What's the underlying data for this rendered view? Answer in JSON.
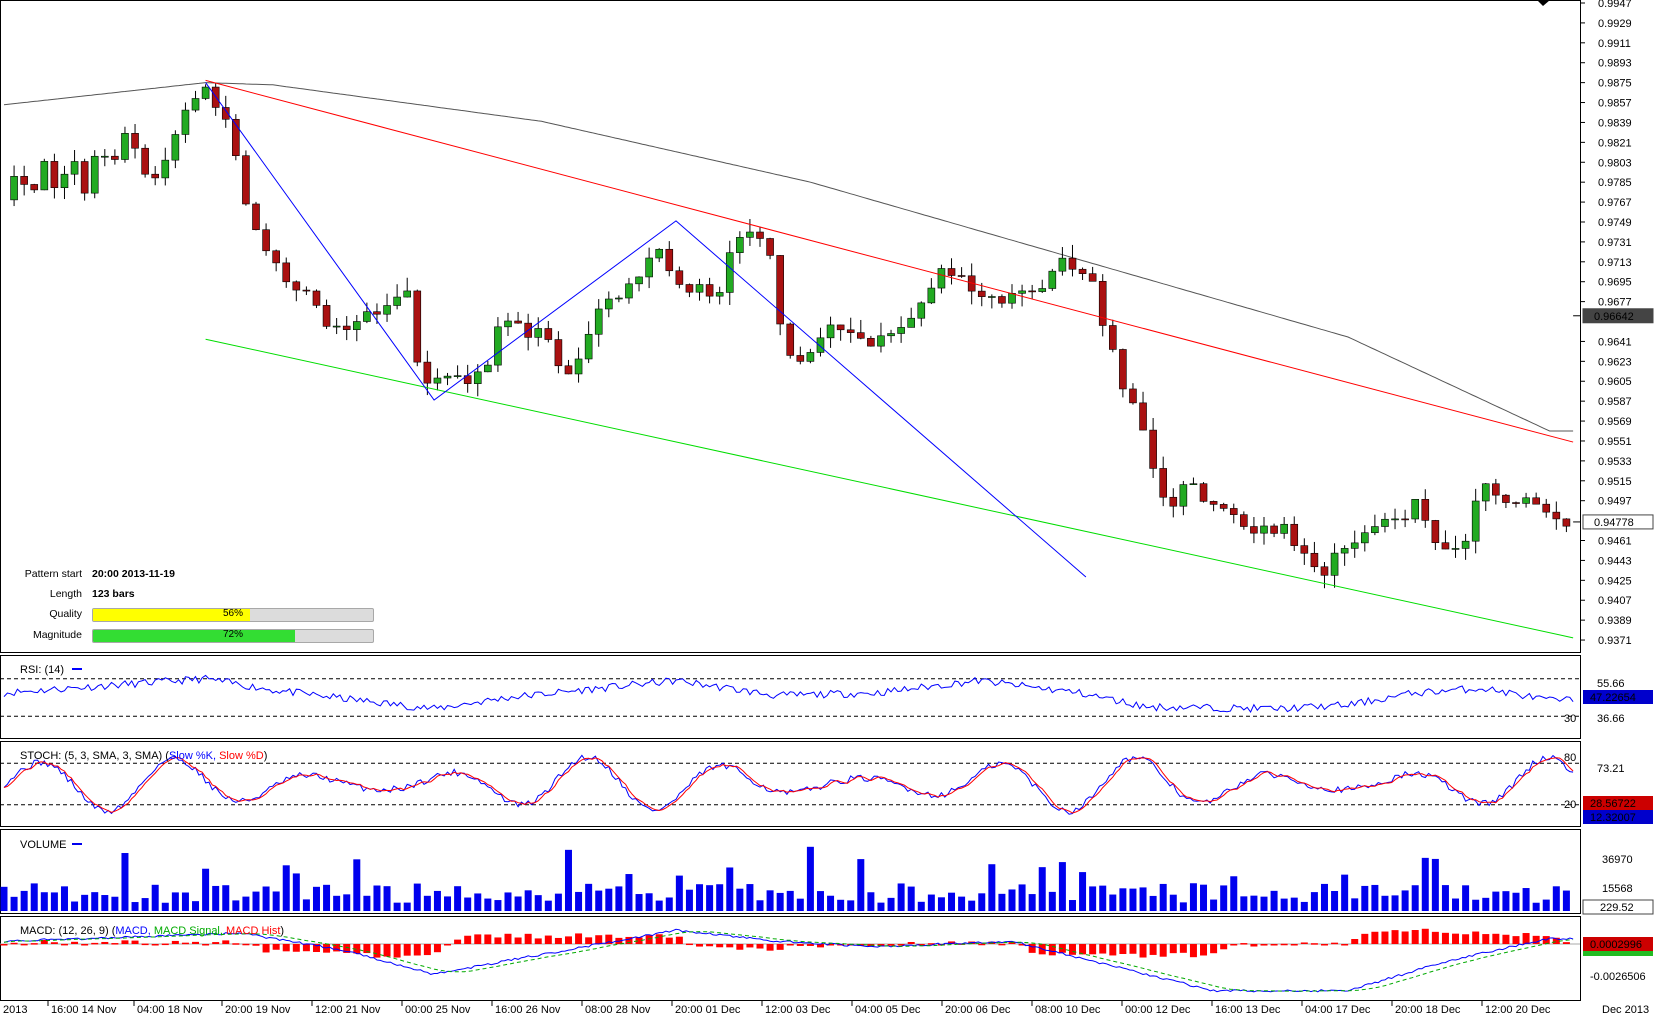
{
  "chart_data": {
    "type": "candlestick",
    "price_axis": {
      "ylim": [
        0.9362,
        0.9947
      ],
      "ticks": [
        "0.9947",
        "0.9929",
        "0.9911",
        "0.9893",
        "0.9875",
        "0.9857",
        "0.9839",
        "0.9821",
        "0.9803",
        "0.9785",
        "0.9767",
        "0.9749",
        "0.9731",
        "0.9713",
        "0.9695",
        "0.9677",
        "0.9641",
        "0.9623",
        "0.9605",
        "0.9587",
        "0.9569",
        "0.9551",
        "0.9533",
        "0.9515",
        "0.9497",
        "0.9461",
        "0.9443",
        "0.9425",
        "0.9407",
        "0.9389",
        "0.9371"
      ],
      "markers": [
        {
          "label": "0.96642",
          "value": 0.96642,
          "style": "dark"
        },
        {
          "label": "0.94778",
          "value": 0.94778,
          "style": "light"
        }
      ]
    },
    "time_axis": [
      "2013",
      "16:00 14 Nov",
      "04:00 18 Nov",
      "20:00 19 Nov",
      "12:00 21 Nov",
      "00:00 25 Nov",
      "16:00 26 Nov",
      "08:00 28 Nov",
      "20:00 01 Dec",
      "12:00 03 Dec",
      "04:00 05 Dec",
      "20:00 06 Dec",
      "08:00 10 Dec",
      "00:00 12 Dec",
      "16:00 13 Dec",
      "04:00 17 Dec",
      "20:00 18 Dec",
      "12:00 20 Dec",
      "Dec 2013"
    ],
    "keypoints": [
      [
        0,
        0.9775
      ],
      [
        4,
        0.98
      ],
      [
        8,
        0.977
      ],
      [
        12,
        0.98
      ],
      [
        16,
        0.977
      ],
      [
        20,
        0.981
      ],
      [
        24,
        0.977
      ],
      [
        28,
        0.982
      ],
      [
        32,
        0.98
      ],
      [
        36,
        0.983
      ],
      [
        40,
        0.981
      ],
      [
        44,
        0.9785
      ],
      [
        48,
        0.98
      ],
      [
        52,
        0.984
      ],
      [
        56,
        0.986
      ],
      [
        60,
        0.9873
      ],
      [
        64,
        0.985
      ],
      [
        68,
        0.9825
      ],
      [
        72,
        0.976
      ],
      [
        76,
        0.974
      ],
      [
        80,
        0.971
      ],
      [
        84,
        0.97
      ],
      [
        88,
        0.969
      ],
      [
        92,
        0.968
      ],
      [
        96,
        0.965
      ],
      [
        100,
        0.965
      ],
      [
        104,
        0.9665
      ],
      [
        108,
        0.9665
      ],
      [
        112,
        0.967
      ],
      [
        116,
        0.968
      ],
      [
        120,
        0.9685
      ],
      [
        124,
        0.9595
      ],
      [
        128,
        0.961
      ],
      [
        132,
        0.9615
      ],
      [
        136,
        0.9605
      ],
      [
        140,
        0.961
      ],
      [
        144,
        0.9615
      ],
      [
        148,
        0.966
      ],
      [
        152,
        0.9665
      ],
      [
        156,
        0.964
      ],
      [
        160,
        0.9655
      ],
      [
        164,
        0.9625
      ],
      [
        168,
        0.961
      ],
      [
        172,
        0.9635
      ],
      [
        176,
        0.966
      ],
      [
        180,
        0.968
      ],
      [
        184,
        0.968
      ],
      [
        188,
        0.97
      ],
      [
        192,
        0.972
      ],
      [
        196,
        0.973
      ],
      [
        200,
        0.969
      ],
      [
        204,
        0.968
      ],
      [
        208,
        0.9695
      ],
      [
        212,
        0.968
      ],
      [
        216,
        0.972
      ],
      [
        220,
        0.9746
      ],
      [
        224,
        0.974
      ],
      [
        228,
        0.972
      ],
      [
        232,
        0.964
      ],
      [
        236,
        0.9625
      ],
      [
        240,
        0.9635
      ],
      [
        244,
        0.9645
      ],
      [
        248,
        0.9655
      ],
      [
        252,
        0.965
      ],
      [
        256,
        0.9635
      ],
      [
        260,
        0.964
      ],
      [
        264,
        0.965
      ],
      [
        268,
        0.9655
      ],
      [
        272,
        0.9665
      ],
      [
        276,
        0.969
      ],
      [
        280,
        0.9705
      ],
      [
        284,
        0.97
      ],
      [
        288,
        0.969
      ],
      [
        292,
        0.9685
      ],
      [
        296,
        0.9675
      ],
      [
        300,
        0.968
      ],
      [
        304,
        0.969
      ],
      [
        308,
        0.968
      ],
      [
        312,
        0.97
      ],
      [
        316,
        0.9715
      ],
      [
        320,
        0.97
      ],
      [
        324,
        0.969
      ],
      [
        328,
        0.965
      ],
      [
        332,
        0.961
      ],
      [
        336,
        0.958
      ],
      [
        340,
        0.955
      ],
      [
        344,
        0.95
      ],
      [
        348,
        0.9495
      ],
      [
        352,
        0.9515
      ],
      [
        356,
        0.95
      ],
      [
        360,
        0.949
      ],
      [
        364,
        0.949
      ],
      [
        368,
        0.947
      ],
      [
        372,
        0.9465
      ],
      [
        376,
        0.947
      ],
      [
        380,
        0.9475
      ],
      [
        384,
        0.946
      ],
      [
        388,
        0.9445
      ],
      [
        392,
        0.943
      ],
      [
        396,
        0.945
      ],
      [
        400,
        0.9455
      ],
      [
        404,
        0.946
      ],
      [
        408,
        0.947
      ],
      [
        412,
        0.948
      ],
      [
        416,
        0.948
      ],
      [
        420,
        0.95
      ],
      [
        424,
        0.947
      ],
      [
        428,
        0.946
      ],
      [
        432,
        0.9455
      ],
      [
        436,
        0.947
      ],
      [
        440,
        0.952
      ],
      [
        444,
        0.9505
      ],
      [
        448,
        0.9495
      ],
      [
        452,
        0.95
      ],
      [
        456,
        0.949
      ],
      [
        460,
        0.9478
      ]
    ],
    "sma_keypoints": [
      [
        0,
        0.9855
      ],
      [
        60,
        0.9875
      ],
      [
        80,
        0.9873
      ],
      [
        160,
        0.984
      ],
      [
        240,
        0.9785
      ],
      [
        320,
        0.9715
      ],
      [
        400,
        0.9645
      ],
      [
        460,
        0.956
      ]
    ],
    "channel": {
      "upper": {
        "from": [
          60,
          0.9877
        ],
        "to": [
          467,
          0.955
        ]
      },
      "lower": {
        "from": [
          60,
          0.9643
        ],
        "to": [
          467,
          0.9373
        ]
      }
    },
    "zigzag": [
      [
        60,
        0.9875
      ],
      [
        128,
        0.9588
      ],
      [
        200,
        0.975
      ],
      [
        322,
        0.9428
      ]
    ],
    "pattern": {
      "start_key": "Pattern start",
      "start_val": "20:00 2013-11-19",
      "length_key": "Length",
      "length_val": "123 bars",
      "quality_key": "Quality",
      "quality_pct": 56,
      "quality_label": "56%",
      "quality_color": "#ffff00",
      "magnitude_key": "Magnitude",
      "magnitude_pct": 72,
      "magnitude_label": "72%",
      "magnitude_color": "#33dd33"
    },
    "indicators": {
      "rsi": {
        "title": "RSI: (14)",
        "levels": [
          70,
          30
        ],
        "level_label": "30",
        "scale_labels": [
          "55.66",
          "36.66"
        ],
        "value_label": "47.22654",
        "color": "#0000ff"
      },
      "stoch": {
        "title_prefix": "STOCH: (5, 3, SMA, 3, SMA) (",
        "k_name": "Slow %K",
        "d_name": "Slow %D",
        "title_suffix": ")",
        "levels": [
          80,
          20
        ],
        "level_labels": [
          "80",
          "20"
        ],
        "scale_labels": [
          "73.21"
        ],
        "d_value_label": "28.56722",
        "k_value_label": "12.32007",
        "k_color": "#0000ff",
        "d_color": "#ff0000"
      },
      "volume": {
        "title": "VOLUME",
        "scale_labels": [
          "36970",
          "15568"
        ],
        "value_label": "229.52",
        "color": "#0000ee"
      },
      "macd": {
        "title_prefix": "MACD: (12, 26, 9) (",
        "macd_name": "MACD",
        "signal_name": "MACD Signal",
        "hist_name": "MACD Hist",
        "title_suffix": ")",
        "scale_labels": [
          "-0.0026506"
        ],
        "value_label": "0.0002996",
        "macd_color": "#0000ff",
        "signal_color": "#00aa00",
        "hist_color": "#ff0000"
      }
    },
    "colors": {
      "bull": "#22aa22",
      "bear": "#aa1111",
      "wick": "#000000",
      "upper": "#ff0000",
      "lower": "#00dd00",
      "zigzag": "#0000ff",
      "sma": "#555555"
    }
  }
}
